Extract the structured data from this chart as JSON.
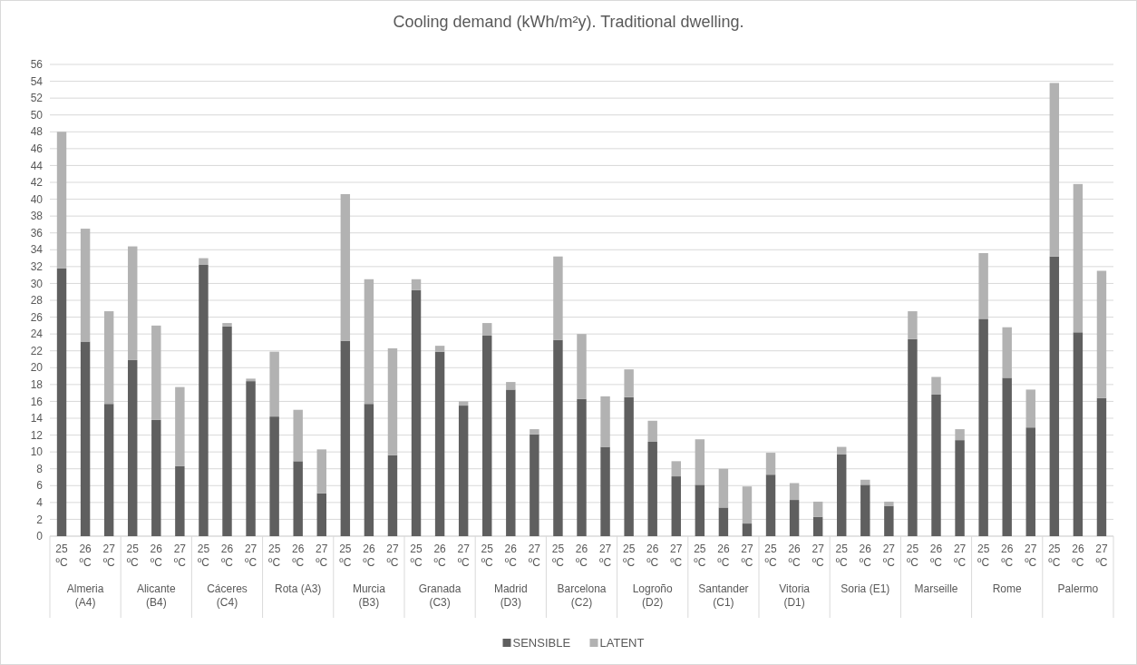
{
  "chart_data": {
    "type": "bar",
    "title": "Cooling demand (kWh/m²y). Traditional dwelling.",
    "stacked": true,
    "categories": [
      "25 ºC",
      "26 ºC",
      "27 ºC",
      "25 ºC",
      "26 ºC",
      "27 ºC",
      "25 ºC",
      "26 ºC",
      "27 ºC",
      "25 ºC",
      "26 ºC",
      "27 ºC",
      "25 ºC",
      "26 ºC",
      "27 ºC",
      "25 ºC",
      "26 ºC",
      "27 ºC",
      "25 ºC",
      "26 ºC",
      "27 ºC",
      "25 ºC",
      "26 ºC",
      "27 ºC",
      "25 ºC",
      "26 ºC",
      "27 ºC",
      "25 ºC",
      "26 ºC",
      "27 ºC",
      "25 ºC",
      "26 ºC",
      "27 ºC",
      "25 ºC",
      "26 ºC",
      "27 ºC",
      "25 ºC",
      "26 ºC",
      "27 ºC",
      "25 ºC",
      "26 ºC",
      "27 ºC",
      "25 ºC",
      "26 ºC",
      "27 ºC"
    ],
    "series": [
      {
        "name": "SENSIBLE",
        "color": "#5f5f5f",
        "values": [
          31.8,
          23.1,
          15.7,
          20.9,
          13.8,
          8.3,
          32.2,
          24.9,
          18.4,
          14.2,
          8.9,
          5.1,
          23.2,
          15.7,
          9.6,
          29.2,
          21.9,
          15.5,
          23.8,
          17.4,
          12.1,
          23.3,
          16.3,
          10.6,
          16.5,
          11.2,
          7.1,
          6.1,
          3.4,
          1.5,
          7.3,
          4.3,
          2.3,
          9.7,
          6.1,
          3.6,
          23.4,
          16.8,
          11.4,
          25.8,
          18.8,
          12.9,
          33.2,
          24.2,
          16.4
        ]
      },
      {
        "name": "LATENT",
        "color": "#b2b2b2",
        "values": [
          16.2,
          13.4,
          11.0,
          13.5,
          11.2,
          9.4,
          0.8,
          0.4,
          0.3,
          7.7,
          6.1,
          5.2,
          17.4,
          14.8,
          12.7,
          1.3,
          0.7,
          0.5,
          1.5,
          0.9,
          0.6,
          9.9,
          7.7,
          6.0,
          3.3,
          2.5,
          1.8,
          5.4,
          4.6,
          4.4,
          2.6,
          2.0,
          1.8,
          0.9,
          0.6,
          0.5,
          3.3,
          2.1,
          1.3,
          7.8,
          6.0,
          4.5,
          20.6,
          17.6,
          15.1
        ]
      }
    ],
    "annotations": [
      "Almeria (A4)",
      "Alicante (B4)",
      "Cáceres (C4)",
      "Rota (A3)",
      "Murcia (B3)",
      "Granada (C3)",
      "Madrid (D3)",
      "Barcelona (C2)",
      "Logroño (D2)",
      "Santander (C1)",
      "Vitoria (D1)",
      "Soria (E1)",
      "Marseille",
      "Rome",
      "Palermo"
    ],
    "ylim": [
      0,
      56
    ],
    "yticks": [
      0,
      2,
      4,
      6,
      8,
      10,
      12,
      14,
      16,
      18,
      20,
      22,
      24,
      26,
      28,
      30,
      32,
      34,
      36,
      38,
      40,
      42,
      44,
      46,
      48,
      50,
      52,
      54,
      56
    ],
    "grid": "y",
    "legend": "bottom"
  }
}
